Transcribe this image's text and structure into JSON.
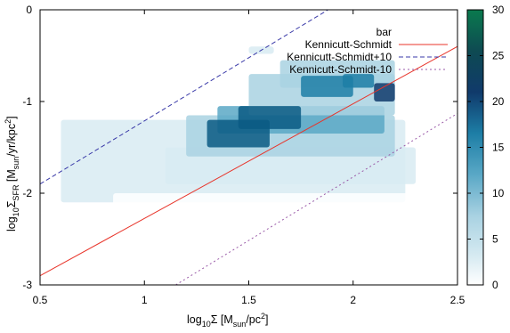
{
  "chart_data": {
    "type": "heatmap",
    "xlabel": {
      "pre": "log",
      "sub1": "10",
      "mid": "Σ [M",
      "sub2": "sun",
      "post": "/pc",
      "sup": "2",
      "end": "]"
    },
    "ylabel": {
      "pre": "log",
      "sub1": "10",
      "mid": "Σ",
      "sub2": "SFR",
      "mid2": " [M",
      "sub3": "sun",
      "post": "/yr/kpc",
      "sup": "2",
      "end": "]"
    },
    "xlim": [
      0.5,
      2.5
    ],
    "ylim": [
      -3,
      0
    ],
    "x_ticks": [
      0.5,
      1,
      1.5,
      2,
      2.5
    ],
    "x_tick_labels": [
      "0.5",
      "1",
      "1.5",
      "2",
      "2.5"
    ],
    "y_ticks": [
      0,
      -1,
      -2,
      -3
    ],
    "y_tick_labels": [
      "0",
      "-1",
      "-2",
      "-3"
    ],
    "colorbar": {
      "min": 0,
      "max": 30,
      "ticks": [
        0,
        5,
        10,
        15,
        20,
        25,
        30
      ],
      "tick_labels": [
        "0",
        "5",
        "10",
        "15",
        "20",
        "25",
        "30"
      ],
      "colors": [
        "#ffffff",
        "#d8ebf2",
        "#a9d2e2",
        "#5aa8c6",
        "#1d7ea6",
        "#0b5a84",
        "#103a6b",
        "#0e4a52",
        "#0c6848",
        "#0a7a4e"
      ]
    },
    "legend": {
      "placement": "top-right",
      "entries": [
        {
          "label": "bar",
          "style": "heatmap"
        },
        {
          "label": "Kennicutt-Schmidt",
          "color": "#e8342a",
          "dash": "solid"
        },
        {
          "label": "Kennicutt-Schmidt+10",
          "color": "#3a3aa8",
          "dash": "dashed"
        },
        {
          "label": "Kennicutt-Schmidt-10",
          "color": "#9a5aa8",
          "dash": "dotted"
        }
      ]
    },
    "lines": [
      {
        "name": "Kennicutt-Schmidt",
        "x": [
          0.5,
          2.5
        ],
        "y": [
          -2.9,
          -0.4
        ]
      },
      {
        "name": "Kennicutt-Schmidt+10",
        "x": [
          0.5,
          1.88
        ],
        "y": [
          -1.9,
          0.0
        ]
      },
      {
        "name": "Kennicutt-Schmidt-10",
        "x": [
          1.15,
          2.5
        ],
        "y": [
          -3.0,
          -1.13
        ]
      }
    ],
    "density_bands": [
      {
        "x0": 0.6,
        "x1": 2.25,
        "y0": -2.1,
        "y1": -1.2,
        "value": 2
      },
      {
        "x0": 0.85,
        "x1": 2.35,
        "y0": -2.4,
        "y1": -2.0,
        "value": 1
      },
      {
        "x0": 1.1,
        "x1": 2.3,
        "y0": -1.9,
        "y1": -1.5,
        "value": 3
      },
      {
        "x0": 1.2,
        "x1": 2.2,
        "y0": -1.6,
        "y1": -1.15,
        "value": 6
      },
      {
        "x0": 1.35,
        "x1": 2.15,
        "y0": -1.35,
        "y1": -1.05,
        "value": 10
      },
      {
        "x0": 1.5,
        "x1": 2.2,
        "y0": -1.15,
        "y1": -0.7,
        "value": 7
      },
      {
        "x0": 1.65,
        "x1": 2.2,
        "y0": -0.85,
        "y1": -0.55,
        "value": 5
      },
      {
        "x0": 1.3,
        "x1": 1.6,
        "y0": -1.5,
        "y1": -1.2,
        "value": 18
      },
      {
        "x0": 1.45,
        "x1": 1.75,
        "y0": -1.3,
        "y1": -1.05,
        "value": 16
      },
      {
        "x0": 1.75,
        "x1": 2.0,
        "y0": -0.95,
        "y1": -0.72,
        "value": 14
      },
      {
        "x0": 2.1,
        "x1": 2.2,
        "y0": -1.0,
        "y1": -0.8,
        "value": 20
      },
      {
        "x0": 1.95,
        "x1": 2.1,
        "y0": -0.85,
        "y1": -0.7,
        "value": 12
      },
      {
        "x0": 1.5,
        "x1": 1.62,
        "y0": -0.48,
        "y1": -0.4,
        "value": 4
      },
      {
        "x0": 2.1,
        "x1": 2.3,
        "y0": -2.45,
        "y1": -2.25,
        "value": 1
      }
    ]
  }
}
